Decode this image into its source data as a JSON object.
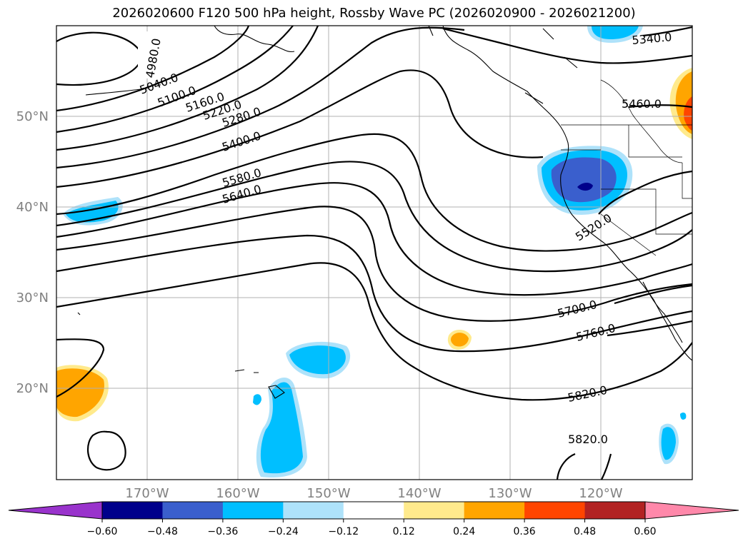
{
  "title": "2026020600 F120 500 hPa height, Rossby Wave PC (2026020900 - 2026021200)",
  "axes": {
    "lat_labels": [
      "50°N",
      "40°N",
      "30°N",
      "20°N"
    ],
    "lon_labels": [
      "170°W",
      "160°W",
      "150°W",
      "140°W",
      "130°W",
      "120°W"
    ]
  },
  "contour_labels": [
    "4980.0",
    "5040.0",
    "5100.0",
    "5160.0",
    "5220.0",
    "5280.0",
    "5400.0",
    "5580.0",
    "5640.0",
    "5340.0",
    "5460.0",
    "5520.0",
    "5700.0",
    "5760.0",
    "5820.0",
    "5820.0"
  ],
  "colorbar": {
    "ticks": [
      "−0.60",
      "−0.48",
      "−0.36",
      "−0.24",
      "−0.12",
      "0.12",
      "0.24",
      "0.36",
      "0.48",
      "0.60"
    ],
    "colors": [
      "#9933cc",
      "#00008b",
      "#3a5fcd",
      "#00bfff",
      "#aee2fa",
      "#ffffff",
      "#ffea8c",
      "#ffa500",
      "#ff4500",
      "#b22222",
      "#ff88aa"
    ]
  },
  "shading_colors": {
    "negative_strong": "#00008b",
    "negative_mid": "#3a5fcd",
    "negative": "#00bfff",
    "negative_weak": "#aee2fa",
    "positive_weak": "#ffea8c",
    "positive": "#ffa500",
    "positive_mid": "#ff4500"
  }
}
